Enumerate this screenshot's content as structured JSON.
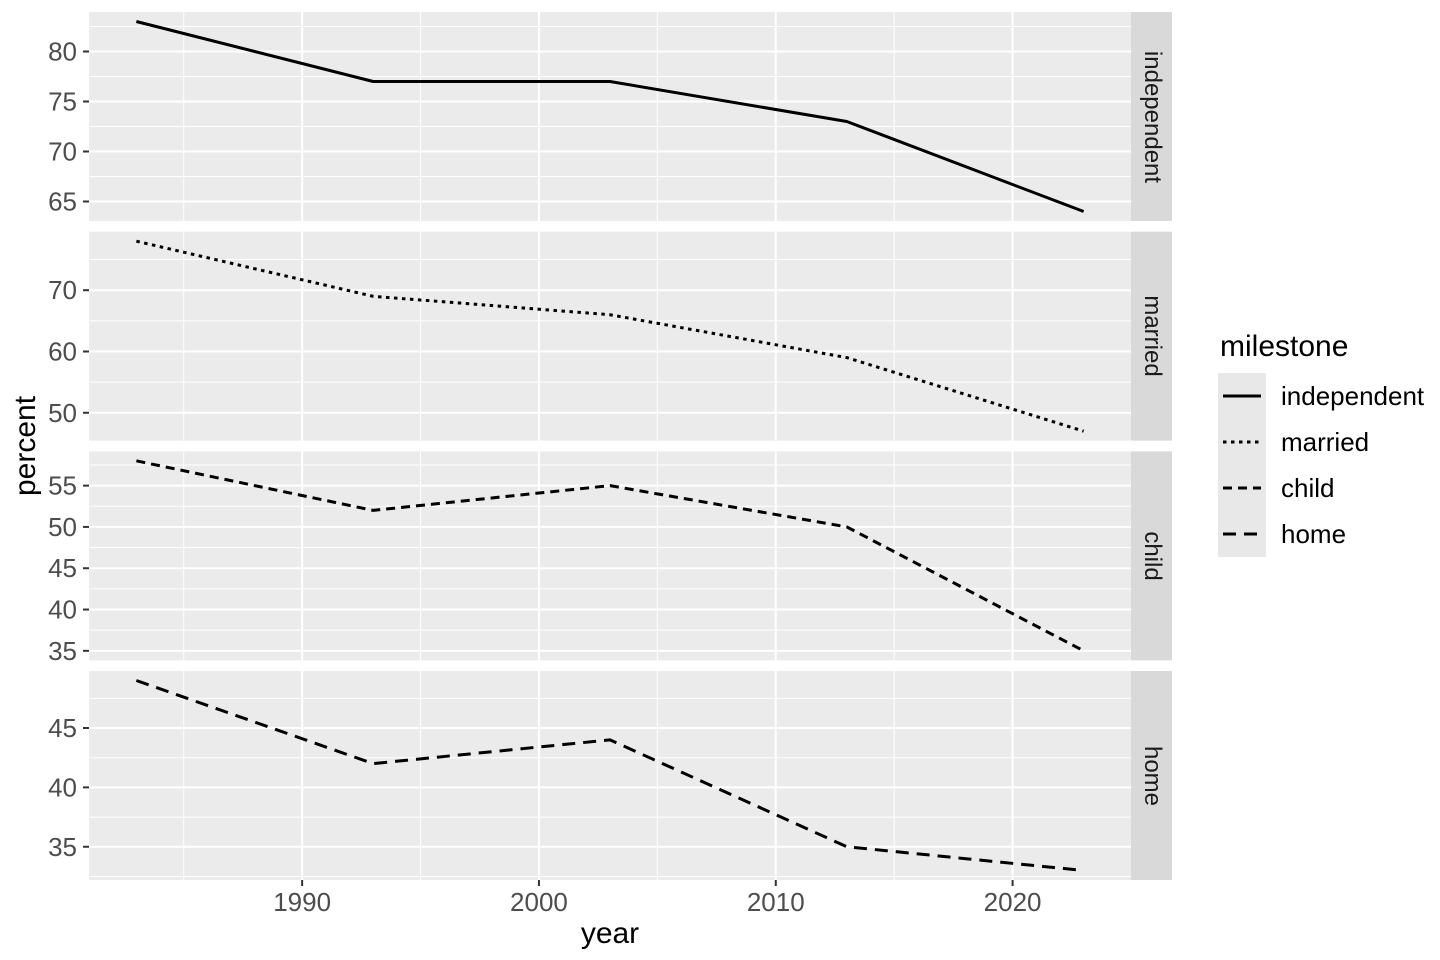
{
  "chart_data": {
    "type": "line",
    "title": "",
    "xlabel": "year",
    "ylabel": "percent",
    "x": [
      1983,
      1993,
      2003,
      2013,
      2023
    ],
    "x_ticks": [
      1990,
      2000,
      2010,
      2020
    ],
    "x_minor_ticks": [
      1985,
      1995,
      2005,
      2015
    ],
    "xlim": [
      1981,
      2025
    ],
    "grid": true,
    "legend_position": "right",
    "facets": [
      {
        "label": "independent",
        "linetype": "solid",
        "values": [
          83,
          77,
          77,
          73,
          64
        ],
        "y_ticks": [
          65,
          70,
          75,
          80
        ],
        "ylim": [
          63.05,
          83.95
        ]
      },
      {
        "label": "married",
        "linetype": "dotted",
        "values": [
          78,
          69,
          66,
          59,
          47
        ],
        "y_ticks": [
          50,
          60,
          70
        ],
        "ylim": [
          45.45,
          79.55
        ]
      },
      {
        "label": "child",
        "linetype": "dashed",
        "values": [
          58,
          52,
          55,
          50,
          35
        ],
        "y_ticks": [
          35,
          40,
          45,
          50,
          55
        ],
        "ylim": [
          33.85,
          59.15
        ]
      },
      {
        "label": "home",
        "linetype": "longdash",
        "values": [
          49,
          42,
          44,
          35,
          33
        ],
        "y_ticks": [
          35,
          40,
          45
        ],
        "ylim": [
          32.2,
          49.8
        ]
      }
    ],
    "legend": {
      "title": "milestone",
      "items": [
        {
          "label": "independent",
          "linetype": "solid"
        },
        {
          "label": "married",
          "linetype": "dotted"
        },
        {
          "label": "child",
          "linetype": "dashed"
        },
        {
          "label": "home",
          "linetype": "longdash"
        }
      ]
    },
    "colors": {
      "panel_bg": "#EBEBEB",
      "strip_bg": "#D9D9D9",
      "grid": "#FFFFFF",
      "series_line": "#000000",
      "axis_text": "#4D4D4D",
      "tick_mark": "#333333",
      "legend_key_bg": "#E8E8E8",
      "strip_text": "#1A1A1A",
      "title_text": "#000000"
    }
  }
}
